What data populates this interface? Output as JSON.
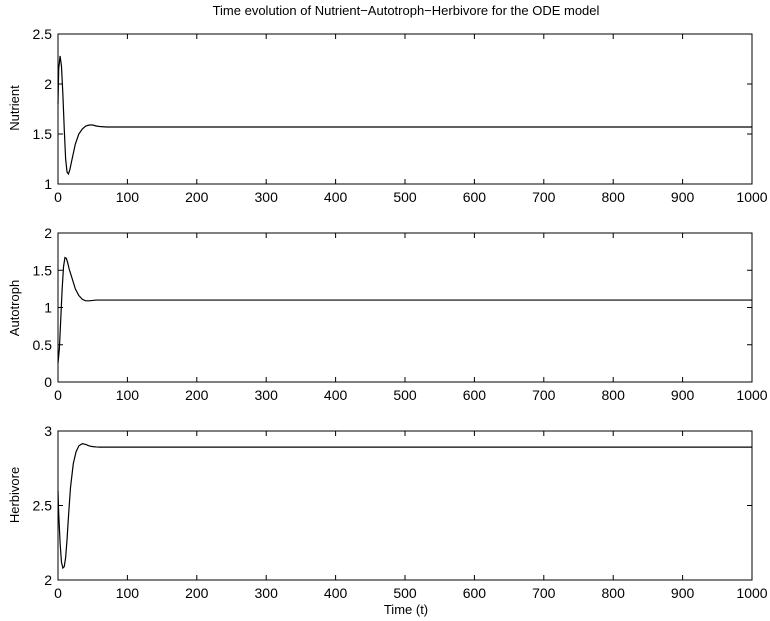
{
  "figure": {
    "title": "Time evolution of Nutrient−Autotroph−Herbivore for the ODE model"
  },
  "chart_data": [
    {
      "type": "line",
      "title": "Time evolution of Nutrient−Autotroph−Herbivore for the ODE model",
      "xlabel": "",
      "ylabel": "Nutrient",
      "xlim": [
        0,
        1000
      ],
      "ylim": [
        1,
        2.5
      ],
      "xticks": [
        0,
        100,
        200,
        300,
        400,
        500,
        600,
        700,
        800,
        900,
        1000
      ],
      "yticks": [
        1,
        1.5,
        2,
        2.5
      ],
      "grid": false,
      "series": [
        {
          "x": [
            0,
            1,
            3,
            5,
            7,
            9,
            11,
            13,
            15,
            17,
            20,
            25,
            30,
            35,
            40,
            45,
            50,
            55,
            60,
            70,
            80,
            100,
            150,
            200,
            300,
            400,
            500,
            600,
            700,
            800,
            900,
            1000
          ],
          "y": [
            1.8,
            2.15,
            2.28,
            2.18,
            1.9,
            1.55,
            1.25,
            1.12,
            1.1,
            1.14,
            1.24,
            1.4,
            1.5,
            1.55,
            1.58,
            1.59,
            1.59,
            1.58,
            1.575,
            1.57,
            1.57,
            1.57,
            1.57,
            1.57,
            1.57,
            1.57,
            1.57,
            1.57,
            1.57,
            1.57,
            1.57,
            1.57
          ]
        }
      ]
    },
    {
      "type": "line",
      "xlabel": "",
      "ylabel": "Autotroph",
      "xlim": [
        0,
        1000
      ],
      "ylim": [
        0,
        2
      ],
      "xticks": [
        0,
        100,
        200,
        300,
        400,
        500,
        600,
        700,
        800,
        900,
        1000
      ],
      "yticks": [
        0,
        0.5,
        1,
        1.5,
        2
      ],
      "grid": false,
      "series": [
        {
          "x": [
            0,
            2,
            4,
            6,
            8,
            10,
            12,
            14,
            16,
            20,
            25,
            30,
            35,
            40,
            45,
            50,
            55,
            60,
            70,
            80,
            100,
            150,
            200,
            300,
            400,
            500,
            600,
            700,
            800,
            900,
            1000
          ],
          "y": [
            0.25,
            0.45,
            0.85,
            1.25,
            1.55,
            1.67,
            1.66,
            1.6,
            1.52,
            1.4,
            1.25,
            1.16,
            1.11,
            1.09,
            1.09,
            1.095,
            1.1,
            1.1,
            1.1,
            1.1,
            1.1,
            1.1,
            1.1,
            1.1,
            1.1,
            1.1,
            1.1,
            1.1,
            1.1,
            1.1,
            1.1
          ]
        }
      ]
    },
    {
      "type": "line",
      "xlabel": "Time (t)",
      "ylabel": "Herbivore",
      "xlim": [
        0,
        1000
      ],
      "ylim": [
        2,
        3
      ],
      "xticks": [
        0,
        100,
        200,
        300,
        400,
        500,
        600,
        700,
        800,
        900,
        1000
      ],
      "yticks": [
        2,
        2.5,
        3
      ],
      "grid": false,
      "series": [
        {
          "x": [
            0,
            1,
            3,
            5,
            7,
            9,
            11,
            13,
            15,
            18,
            22,
            26,
            30,
            35,
            40,
            45,
            50,
            55,
            60,
            70,
            80,
            100,
            150,
            200,
            300,
            400,
            500,
            600,
            700,
            800,
            900,
            1000
          ],
          "y": [
            2.6,
            2.45,
            2.25,
            2.12,
            2.08,
            2.09,
            2.15,
            2.27,
            2.42,
            2.62,
            2.78,
            2.86,
            2.9,
            2.915,
            2.91,
            2.9,
            2.895,
            2.893,
            2.892,
            2.892,
            2.892,
            2.892,
            2.892,
            2.892,
            2.892,
            2.892,
            2.892,
            2.892,
            2.892,
            2.892,
            2.892,
            2.892
          ]
        }
      ]
    }
  ]
}
